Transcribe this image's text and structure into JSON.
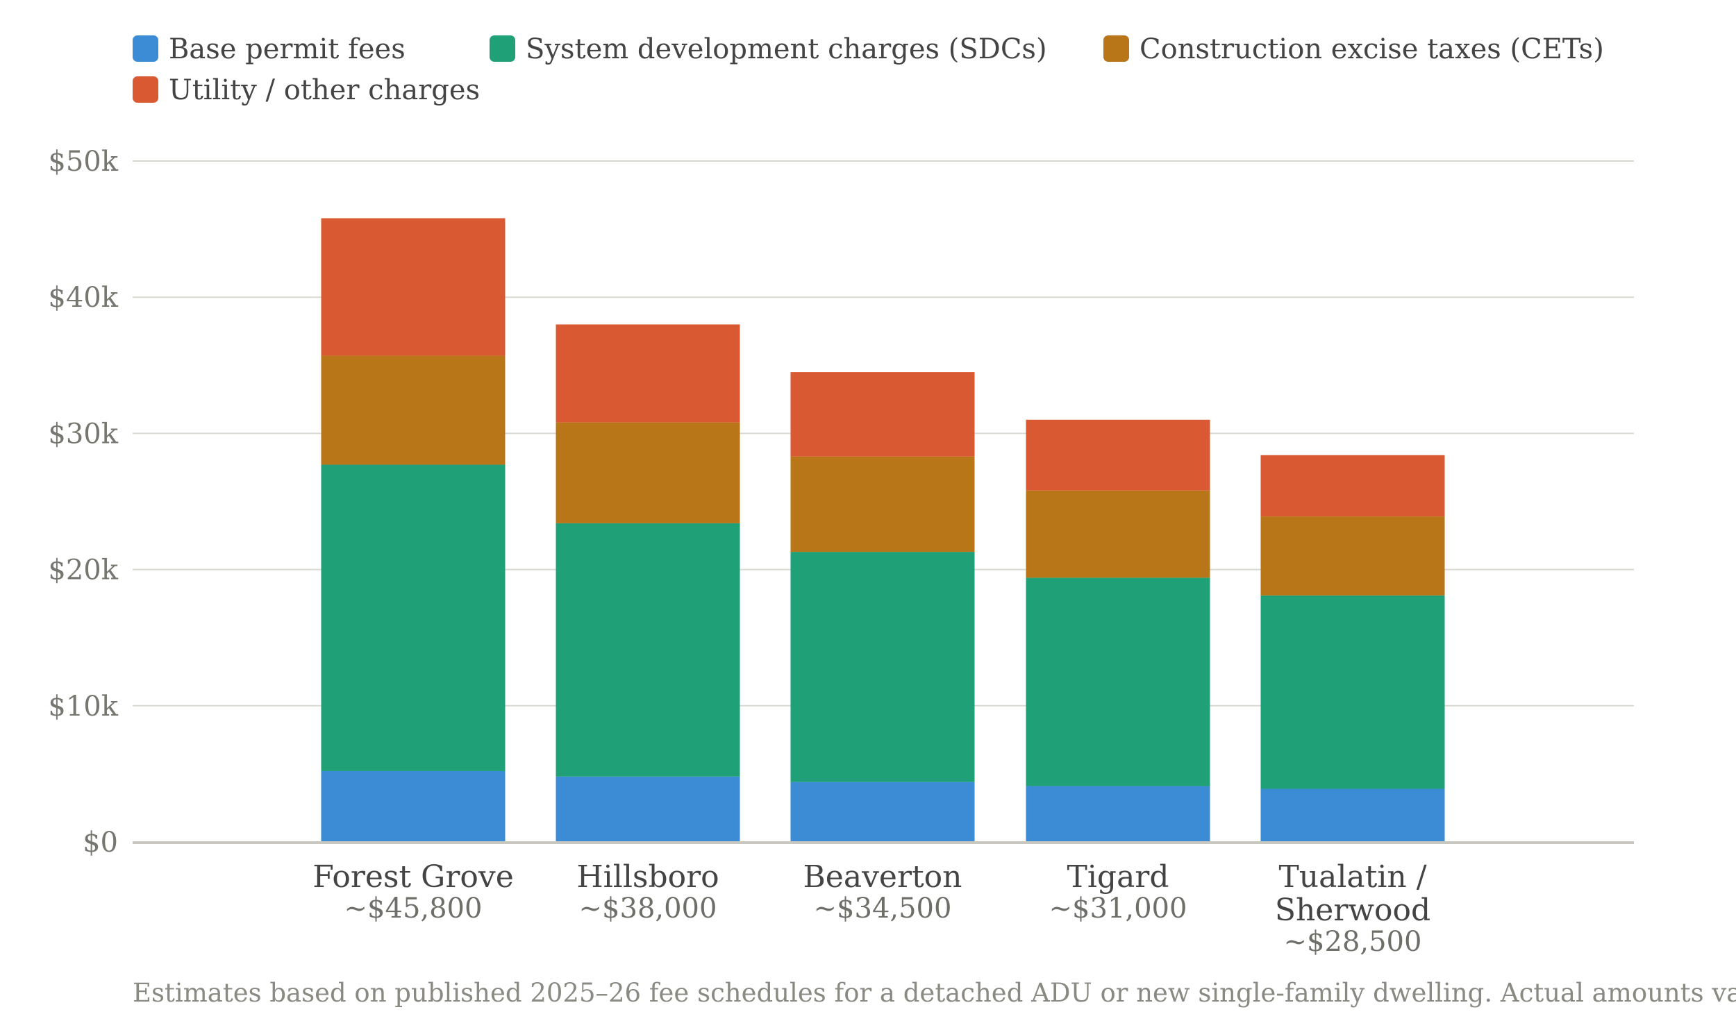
{
  "chart_data": {
    "type": "bar",
    "stacked": true,
    "categories": [
      [
        "Forest Grove"
      ],
      [
        "Hillsboro"
      ],
      [
        "Beaverton"
      ],
      [
        "Tigard"
      ],
      [
        "Tualatin /",
        "Sherwood"
      ]
    ],
    "totals": [
      "~$45,800",
      "~$38,000",
      "~$34,500",
      "~$31,000",
      "~$28,500"
    ],
    "series": [
      {
        "name": "Base permit fees",
        "color": "#3b8bd5",
        "values": [
          5200,
          4800,
          4400,
          4100,
          3900
        ]
      },
      {
        "name": "System development charges (SDCs)",
        "color": "#1fa077",
        "values": [
          22500,
          18600,
          16900,
          15300,
          14200
        ]
      },
      {
        "name": "Construction excise taxes (CETs)",
        "color": "#b87618",
        "values": [
          8000,
          7400,
          7000,
          6400,
          5800
        ]
      },
      {
        "name": "Utility / other charges",
        "color": "#d95a32",
        "values": [
          10100,
          7200,
          6200,
          5200,
          4500
        ]
      }
    ],
    "yticks": [
      "$0",
      "$10k",
      "$20k",
      "$30k",
      "$40k",
      "$50k"
    ],
    "ylim": [
      0,
      50000
    ],
    "ystep": 10000,
    "grid": true,
    "legend": "top-left",
    "footnote": "Estimates based on published 2025–26 fee schedules for a detached ADU or new single-family dwelling. Actual amounts va"
  }
}
